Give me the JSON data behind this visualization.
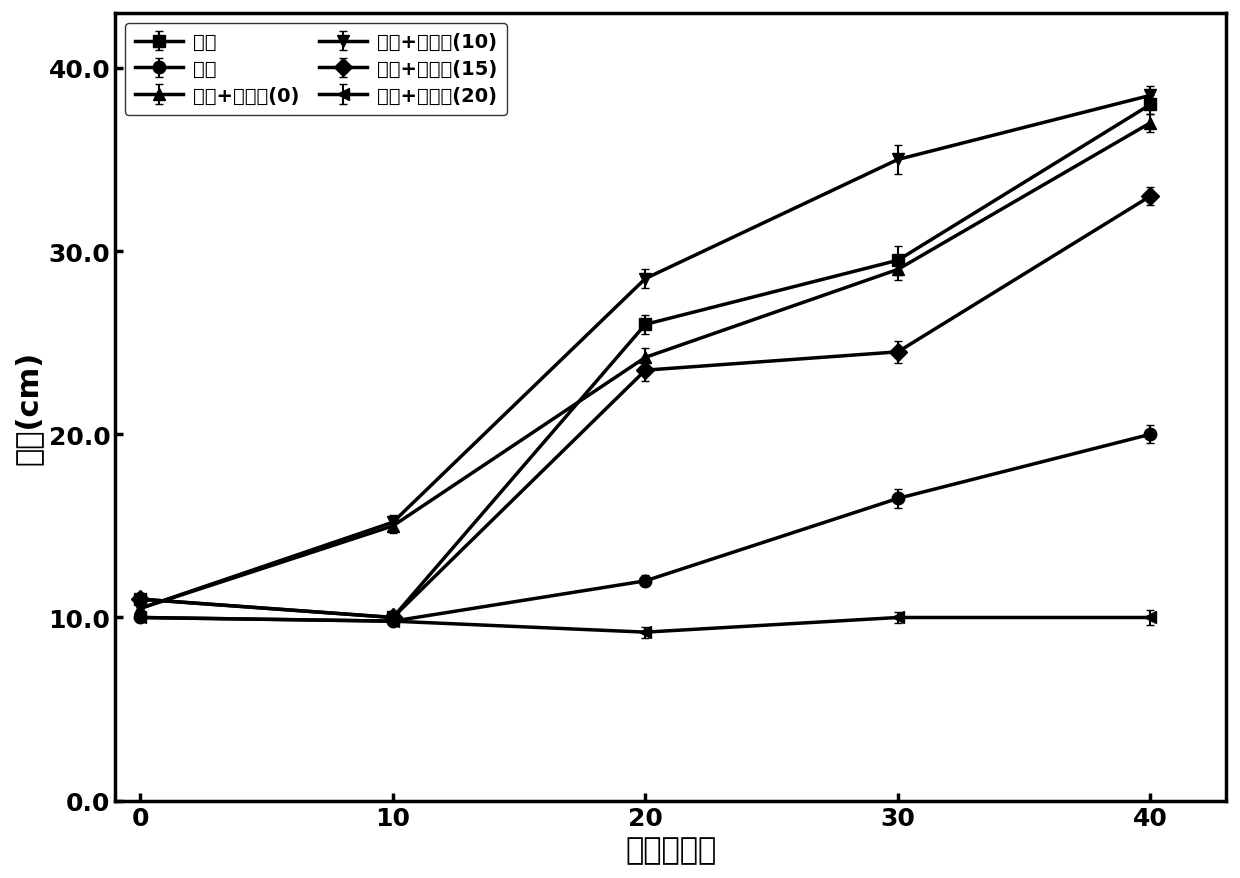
{
  "x": [
    0,
    10,
    20,
    30,
    40
  ],
  "series": [
    {
      "label": "空白",
      "y": [
        11.0,
        10.0,
        26.0,
        29.5,
        38.0
      ],
      "yerr": [
        0.2,
        0.3,
        0.5,
        0.8,
        0.5
      ],
      "marker": "s",
      "color": "#000000",
      "linestyle": "-"
    },
    {
      "label": "莹草",
      "y": [
        10.0,
        9.8,
        12.0,
        16.5,
        20.0
      ],
      "yerr": [
        0.2,
        0.2,
        0.3,
        0.5,
        0.5
      ],
      "marker": "o",
      "color": "#000000",
      "linestyle": "-"
    },
    {
      "label": "莹草+改替剂(0)",
      "y": [
        10.5,
        15.0,
        24.2,
        29.0,
        37.0
      ],
      "yerr": [
        0.2,
        0.4,
        0.5,
        0.6,
        0.5
      ],
      "marker": "^",
      "color": "#000000",
      "linestyle": "-"
    },
    {
      "label": "莹草+改替剂(10)",
      "y": [
        10.5,
        15.2,
        28.5,
        35.0,
        38.5
      ],
      "yerr": [
        0.2,
        0.4,
        0.5,
        0.8,
        0.5
      ],
      "marker": "v",
      "color": "#000000",
      "linestyle": "-"
    },
    {
      "label": "莹草+改替剂(15)",
      "y": [
        11.0,
        10.0,
        23.5,
        24.5,
        33.0
      ],
      "yerr": [
        0.2,
        0.2,
        0.6,
        0.6,
        0.5
      ],
      "marker": "D",
      "color": "#000000",
      "linestyle": "-"
    },
    {
      "label": "莹草+改替剂(20)",
      "y": [
        10.0,
        9.8,
        9.2,
        10.0,
        10.0
      ],
      "yerr": [
        0.2,
        0.2,
        0.3,
        0.3,
        0.4
      ],
      "marker": "<",
      "color": "#000000",
      "linestyle": "-"
    }
  ],
  "xlabel": "时间（天）",
  "ylabel": "株长(cm)",
  "xlim": [
    -1,
    43
  ],
  "ylim": [
    0.0,
    43.0
  ],
  "yticks": [
    0.0,
    10.0,
    20.0,
    30.0,
    40.0
  ],
  "xticks": [
    0,
    10,
    20,
    30,
    40
  ],
  "label_fontsize": 22,
  "tick_fontsize": 18,
  "legend_fontsize": 14,
  "linewidth": 2.5,
  "markersize": 9,
  "background_color": "#ffffff"
}
